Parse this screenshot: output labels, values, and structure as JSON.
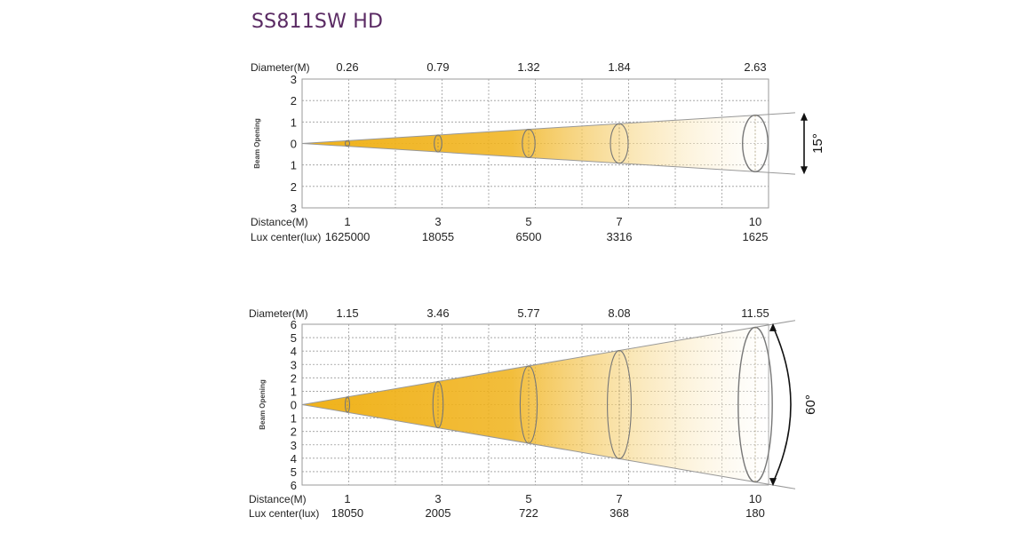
{
  "title": "SS811SW HD",
  "colors": {
    "title": "#5a2a63",
    "beam_near": "#f0b21a",
    "beam_far": "#ffffff",
    "grid": "#9a9a9a",
    "outline": "#777777"
  },
  "diagrams": [
    {
      "beam_angle_label": "15°",
      "diameter_label": "Diameter(M)",
      "distance_label": "Distance(M)",
      "lux_label": "Lux center(lux)",
      "axis_label": "Beam Opening",
      "y_ticks": [
        "3",
        "2",
        "1",
        "0",
        "1",
        "2",
        "3"
      ],
      "y_max": 3,
      "x_max": 10,
      "half_angle_deg": 7.5,
      "stations": [
        {
          "distance": 1,
          "distance_label": "1",
          "diameter": 0.26,
          "diameter_label": "0.26",
          "lux": "1625000"
        },
        {
          "distance": 3,
          "distance_label": "3",
          "diameter": 0.79,
          "diameter_label": "0.79",
          "lux": "18055"
        },
        {
          "distance": 5,
          "distance_label": "5",
          "diameter": 1.32,
          "diameter_label": "1.32",
          "lux": "6500"
        },
        {
          "distance": 7,
          "distance_label": "7",
          "diameter": 1.84,
          "diameter_label": "1.84",
          "lux": "3316"
        },
        {
          "distance": 10,
          "distance_label": "10",
          "diameter": 2.63,
          "diameter_label": "2.63",
          "lux": "1625"
        }
      ]
    },
    {
      "beam_angle_label": "60°",
      "diameter_label": "Diameter(M)",
      "distance_label": "Distance(M)",
      "lux_label": "Lux center(lux)",
      "axis_label": "Beam Opening",
      "y_ticks": [
        "6",
        "5",
        "4",
        "3",
        "2",
        "1",
        "0",
        "1",
        "2",
        "3",
        "4",
        "5",
        "6"
      ],
      "y_max": 6,
      "x_max": 10,
      "half_angle_deg": 30,
      "stations": [
        {
          "distance": 1,
          "distance_label": "1",
          "diameter": 1.15,
          "diameter_label": "1.15",
          "lux": "18050"
        },
        {
          "distance": 3,
          "distance_label": "3",
          "diameter": 3.46,
          "diameter_label": "3.46",
          "lux": "2005"
        },
        {
          "distance": 5,
          "distance_label": "5",
          "diameter": 5.77,
          "diameter_label": "5.77",
          "lux": "722"
        },
        {
          "distance": 7,
          "distance_label": "7",
          "diameter": 8.08,
          "diameter_label": "8.08",
          "lux": "368"
        },
        {
          "distance": 10,
          "distance_label": "10",
          "diameter": 11.55,
          "diameter_label": "11.55",
          "lux": "180"
        }
      ]
    }
  ]
}
